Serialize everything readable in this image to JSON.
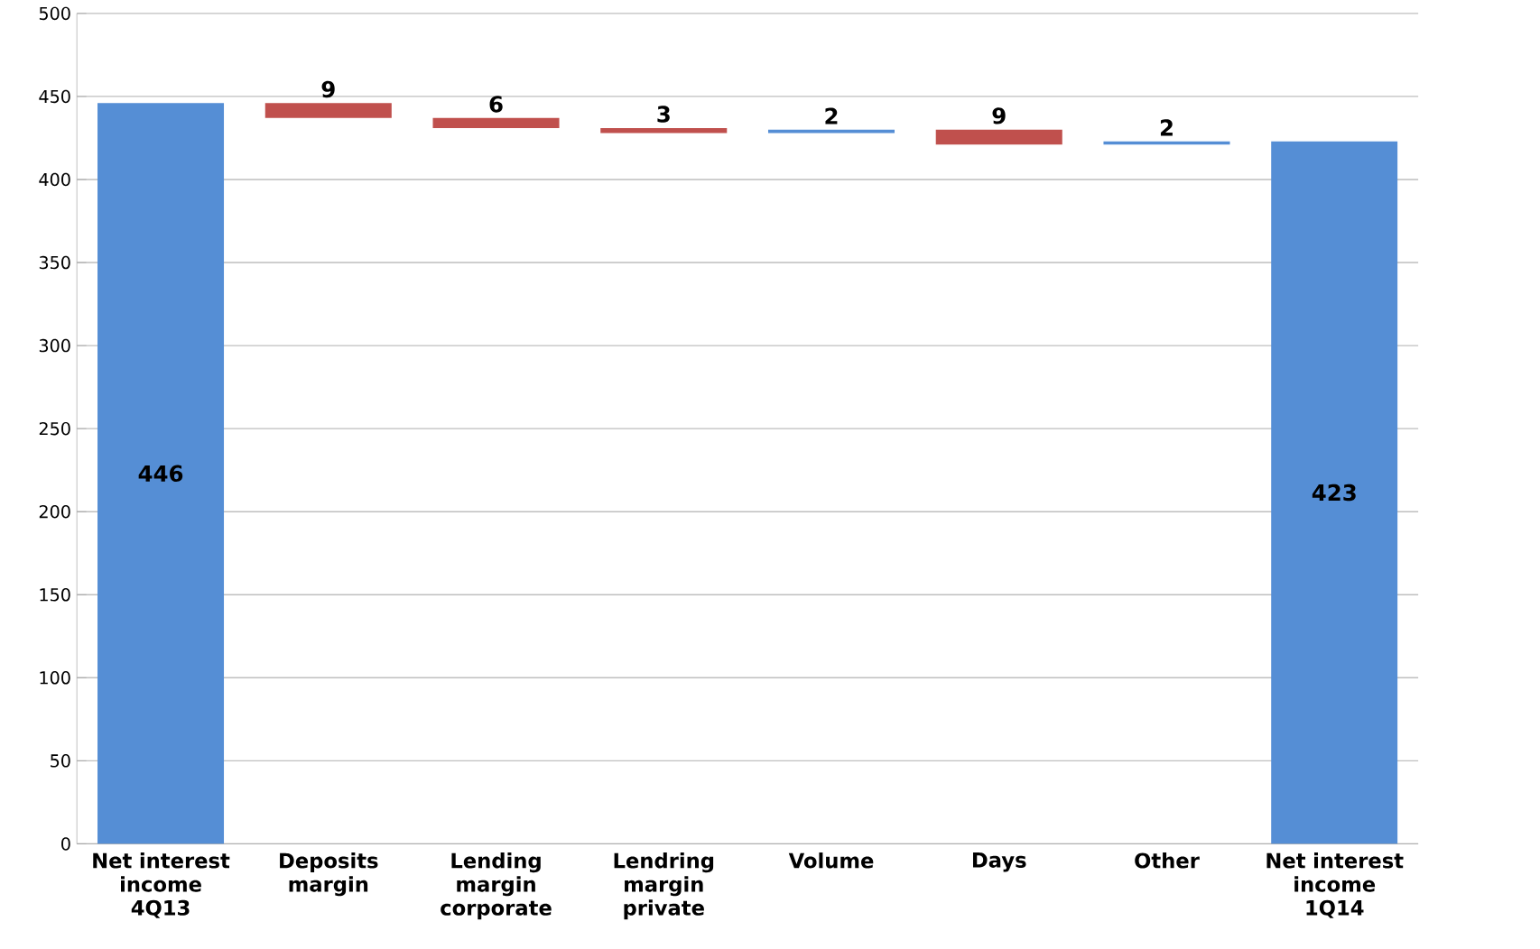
{
  "chart_data": {
    "type": "bar",
    "categories": [
      "Net interest income 4Q13",
      "Deposits margin",
      "Lending margin corporate",
      "Lendring margin private",
      "Volume",
      "Days",
      "Other",
      "Net interest income 1Q14"
    ],
    "values": [
      446,
      -9,
      -6,
      -3,
      2,
      -9,
      2,
      423
    ],
    "base": [
      0,
      446,
      437,
      431,
      428,
      430,
      421,
      0
    ],
    "colors": [
      "#558ed5",
      "#c0504d",
      "#c0504d",
      "#c0504d",
      "#558ed5",
      "#c0504d",
      "#558ed5",
      "#558ed5"
    ],
    "value_labels": [
      "446",
      "9",
      "6",
      "3",
      "2",
      "9",
      "2",
      "423"
    ],
    "ylim": [
      0,
      500
    ],
    "yticks": [
      0,
      50,
      100,
      150,
      200,
      250,
      300,
      350,
      400,
      450,
      500
    ],
    "grid": "y"
  }
}
